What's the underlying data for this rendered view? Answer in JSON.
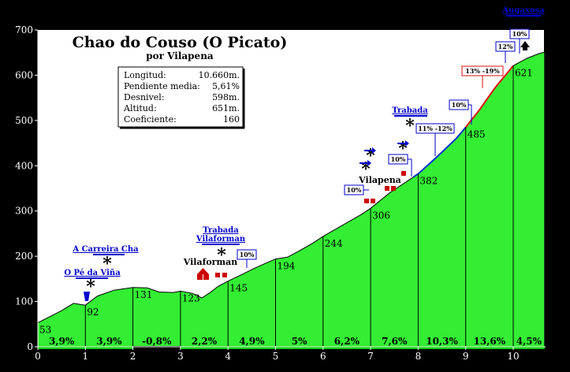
{
  "chart_data": {
    "type": "area",
    "title": "Chao do Couso (O Picato)",
    "subtitle": "por Vilapena",
    "xlim": [
      0,
      11
    ],
    "ylim": [
      0,
      700
    ],
    "x_ticks": [
      "0",
      "1",
      "2",
      "3",
      "4",
      "5",
      "6",
      "7",
      "8",
      "9",
      "10"
    ],
    "y_ticks": [
      "0",
      "100",
      "200",
      "300",
      "400",
      "500",
      "600",
      "700"
    ],
    "grid": false,
    "profile": {
      "x": [
        0,
        0.5,
        0.75,
        1.0,
        1.25,
        1.6,
        2.0,
        2.3,
        2.55,
        2.85,
        3.0,
        3.25,
        3.45,
        3.6,
        3.8,
        4.0,
        4.3,
        4.55,
        4.8,
        5.0,
        5.25,
        5.5,
        5.8,
        6.0,
        6.4,
        6.8,
        7.0,
        7.4,
        7.8,
        8.0,
        8.4,
        8.8,
        9.0,
        9.3,
        9.6,
        10.0,
        10.3,
        10.55,
        10.66
      ],
      "y": [
        53,
        80,
        96,
        92,
        112,
        125,
        131,
        130,
        121,
        120,
        123,
        118,
        108,
        118,
        134,
        145,
        160,
        173,
        185,
        194,
        198,
        212,
        230,
        244,
        268,
        292,
        306,
        340,
        368,
        382,
        420,
        460,
        485,
        525,
        570,
        621,
        638,
        648,
        651
      ]
    },
    "steep_sections": [
      {
        "from": 7.9,
        "to": 9.0,
        "color": "#0033cc"
      },
      {
        "from": 9.0,
        "to": 10.0,
        "color": "#e01010"
      }
    ],
    "km_elevations": [
      {
        "x": 0,
        "label": "53"
      },
      {
        "x": 1,
        "label": "92"
      },
      {
        "x": 2,
        "label": "131"
      },
      {
        "x": 3,
        "label": "123"
      },
      {
        "x": 4,
        "label": "145"
      },
      {
        "x": 5,
        "label": "194"
      },
      {
        "x": 6,
        "label": "244"
      },
      {
        "x": 7,
        "label": "306"
      },
      {
        "x": 8,
        "label": "382"
      },
      {
        "x": 9,
        "label": "485"
      },
      {
        "x": 10,
        "label": "621"
      },
      {
        "x": 10.66,
        "label": "651"
      }
    ],
    "gradients": [
      "3,9%",
      "3,9%",
      "-0,8%",
      "2,2%",
      "4,9%",
      "5%",
      "6,2%",
      "7,6%",
      "10,3%",
      "13,6%",
      "4,5%"
    ],
    "gradient_colors": [
      "#00cc00",
      "#00cc00",
      "#000000",
      "#00cc00",
      "#00cc00",
      "#00cc00",
      "#00cc00",
      "#00cc00",
      "#00cc00",
      "#00cc00",
      "#00cc00"
    ]
  },
  "info_table": [
    {
      "label": "Longitud:",
      "value": "10.660m."
    },
    {
      "label": "Pendiente media:",
      "value": "5,61%"
    },
    {
      "label": "Desnivel:",
      "value": "598m."
    },
    {
      "label": "Altitud:",
      "value": "651m."
    },
    {
      "label": "Coeficiente:",
      "value": "160"
    }
  ],
  "places": {
    "pe_da_vina": "O Pé da Viña",
    "carreira_cha": "A Carreira Cha",
    "trabada_vilaforman": "Trabada Vilaforman",
    "vilaforman": "Vilaforman",
    "vilapena": "Vilapena",
    "trabada": "Trabada",
    "augaxosa": "Augaxosa"
  },
  "slope_boxes": {
    "b1": "10%",
    "b2": "10%",
    "b3": "10%",
    "b4": "11% -12%",
    "b5": "10%",
    "b6": "13% -19%",
    "b7": "12%",
    "b8": "10%"
  },
  "colors": {
    "background": "#000000",
    "profile_fill": "#33ee33",
    "plot_bg": "#ffffff",
    "steep_blue": "#0033cc",
    "steep_red": "#e01010"
  }
}
